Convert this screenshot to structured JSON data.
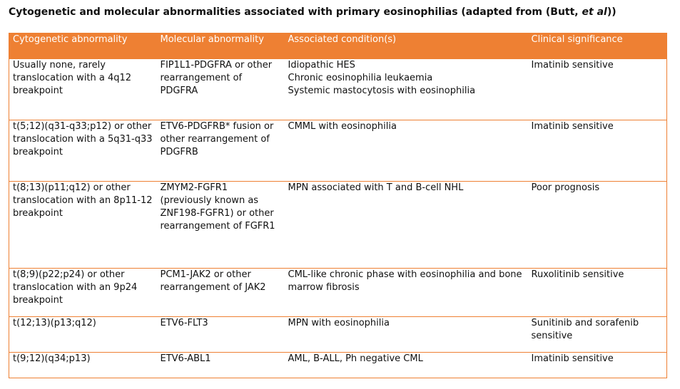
{
  "title": {
    "prefix": "Cytogenetic and molecular abnormalities associated with primary eosinophilias  (adapted from (Butt, ",
    "italic": "et al",
    "suffix": "))"
  },
  "table": {
    "headers": [
      "Cytogenetic abnormality",
      "Molecular abnormality",
      "Associated condition(s)",
      "Clinical significance"
    ],
    "rows": [
      {
        "cytogenetic": "Usually none, rarely translocation with a 4q12 breakpoint",
        "molecular": "FIP1L1-PDGFRA or other rearrangement of PDGFRA",
        "conditions": [
          "Idiopathic HES",
          "Chronic eosinophilia leukaemia",
          "Systemic mastocytosis with eosinophilia"
        ],
        "significance": "Imatinib sensitive"
      },
      {
        "cytogenetic": "t(5;12)(q31-q33;p12) or other translocation with a 5q31-q33 breakpoint",
        "molecular": "ETV6-PDGFRB* fusion or other rearrangement of PDGFRB",
        "conditions": [
          "CMML with eosinophilia"
        ],
        "significance": "Imatinib sensitive"
      },
      {
        "cytogenetic": "t(8;13)(p11;q12) or other translocation with an 8p11-12 breakpoint",
        "molecular": "ZMYM2-FGFR1 (previously known as ZNF198-FGFR1) or other rearrangement of FGFR1",
        "conditions": [
          "MPN associated with T and B-cell NHL"
        ],
        "significance": "Poor prognosis"
      },
      {
        "cytogenetic": "t(8;9)(p22;p24) or other translocation with an 9p24 breakpoint",
        "molecular": "PCM1-JAK2 or other rearrangement of JAK2",
        "conditions": [
          "CML-like chronic phase with eosinophilia and bone marrow fibrosis"
        ],
        "significance": "Ruxolitinib sensitive"
      },
      {
        "cytogenetic": "t(12;13)(p13;q12)",
        "molecular": "ETV6-FLT3",
        "conditions": [
          "MPN with eosinophilia"
        ],
        "significance": "Sunitinib and sorafenib sensitive"
      },
      {
        "cytogenetic": "t(9;12)(q34;p13)",
        "molecular": "ETV6-ABL1",
        "conditions": [
          "AML, B-ALL, Ph negative CML"
        ],
        "significance": "Imatinib sensitive"
      }
    ]
  }
}
